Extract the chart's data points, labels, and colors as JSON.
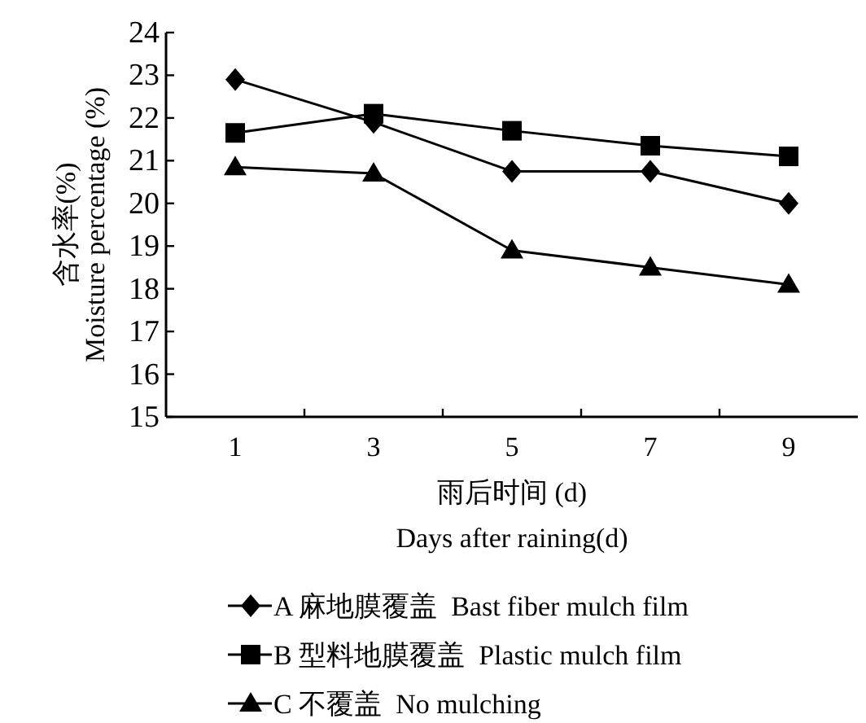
{
  "chart_data": {
    "type": "line",
    "categories": [
      "1",
      "3",
      "5",
      "7",
      "9"
    ],
    "xlabel": "雨后时间 (d)\nDays after raining(d)",
    "ylabel": "含水率(%)\nMoisture percentage (%)",
    "ylim": [
      15,
      24
    ],
    "yticks": [
      15,
      16,
      17,
      18,
      19,
      20,
      21,
      22,
      23,
      24
    ],
    "legend": "bottom",
    "line_style": "solid",
    "series": [
      {
        "name": "A 麻地膜覆盖  Bast fiber mulch film",
        "color": "#000000",
        "marker": "diamond",
        "values": [
          22.9,
          21.9,
          20.75,
          20.75,
          20.0
        ]
      },
      {
        "name": "B 型料地膜覆盖  Plastic mulch film",
        "color": "#000000",
        "marker": "square",
        "values": [
          21.65,
          22.1,
          21.7,
          21.35,
          21.1
        ]
      },
      {
        "name": "C 不覆盖  No mulching",
        "color": "#000000",
        "marker": "triangle",
        "values": [
          20.85,
          20.7,
          18.9,
          18.5,
          18.1
        ]
      }
    ]
  }
}
